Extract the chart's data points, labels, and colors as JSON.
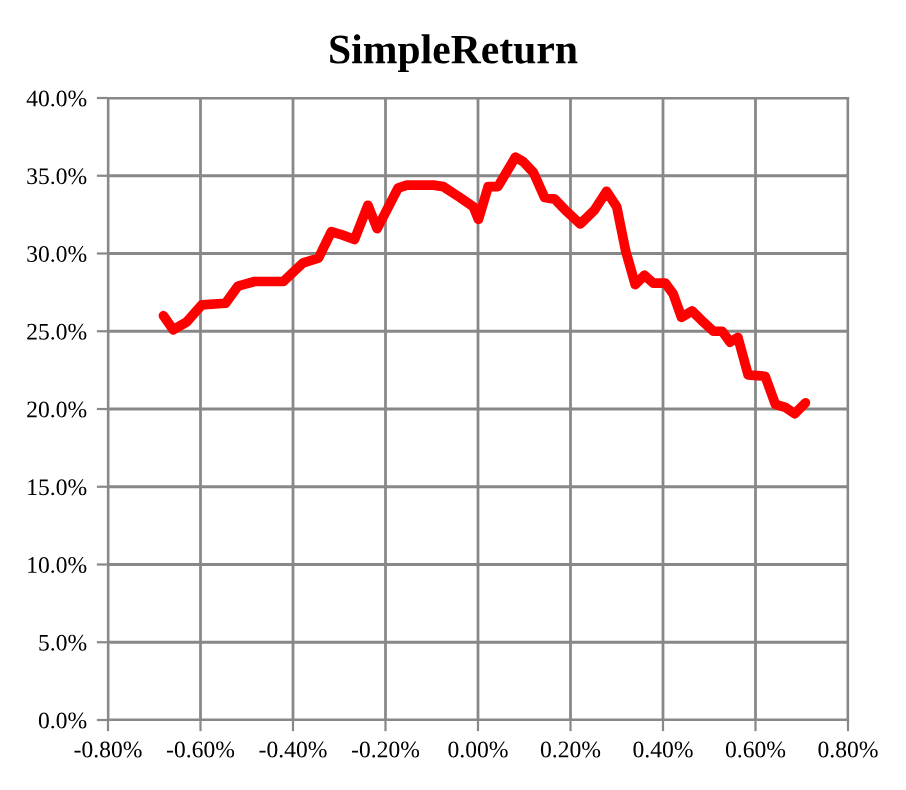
{
  "chart_data": {
    "type": "line",
    "title": "SimpleReturn",
    "x": [
      -0.68,
      -0.659,
      -0.63,
      -0.597,
      -0.546,
      -0.519,
      -0.483,
      -0.421,
      -0.378,
      -0.345,
      -0.317,
      -0.294,
      -0.267,
      -0.238,
      -0.218,
      -0.173,
      -0.154,
      -0.096,
      -0.075,
      -0.039,
      -0.01,
      0.001,
      0.022,
      0.043,
      0.081,
      0.098,
      0.12,
      0.144,
      0.166,
      0.192,
      0.221,
      0.252,
      0.278,
      0.3,
      0.319,
      0.34,
      0.36,
      0.379,
      0.405,
      0.422,
      0.44,
      0.463,
      0.487,
      0.509,
      0.528,
      0.545,
      0.562,
      0.584,
      0.621,
      0.643,
      0.665,
      0.685,
      0.708
    ],
    "series": [
      {
        "color": "#ff0000",
        "values": [
          26.0,
          25.1,
          25.6,
          26.7,
          26.8,
          27.9,
          28.2,
          28.2,
          29.4,
          29.7,
          31.4,
          31.2,
          30.9,
          33.1,
          31.6,
          34.2,
          34.4,
          34.4,
          34.3,
          33.6,
          33.0,
          32.2,
          34.3,
          34.3,
          36.2,
          35.9,
          35.2,
          33.6,
          33.5,
          32.7,
          31.9,
          32.8,
          34.0,
          33.0,
          30.2,
          28.0,
          28.6,
          28.1,
          28.1,
          27.4,
          25.9,
          26.3,
          25.6,
          25.0,
          25.0,
          24.3,
          24.6,
          22.2,
          22.1,
          20.3,
          20.1,
          19.7,
          20.4
        ]
      }
    ],
    "xlim": [
      -0.8,
      0.8
    ],
    "xticks": [
      {
        "value": -0.8,
        "label": "-0.80%"
      },
      {
        "value": -0.6,
        "label": "-0.60%"
      },
      {
        "value": -0.4,
        "label": "-0.40%"
      },
      {
        "value": -0.2,
        "label": "-0.20%"
      },
      {
        "value": 0,
        "label": "0.00%"
      },
      {
        "value": 0.2,
        "label": "0.20%"
      },
      {
        "value": 0.4,
        "label": "0.40%"
      },
      {
        "value": 0.6,
        "label": "0.60%"
      },
      {
        "value": 0.8,
        "label": "0.80%"
      }
    ],
    "ylim": [
      0,
      40
    ],
    "yticks": [
      {
        "value": 0,
        "label": "0.0%"
      },
      {
        "value": 5,
        "label": "5.0%"
      },
      {
        "value": 10,
        "label": "10.0%"
      },
      {
        "value": 15,
        "label": "15.0%"
      },
      {
        "value": 20,
        "label": "20.0%"
      },
      {
        "value": 25,
        "label": "25.0%"
      },
      {
        "value": 30,
        "label": "30.0%"
      },
      {
        "value": 35,
        "label": "35.0%"
      },
      {
        "value": 40,
        "label": "40.0%"
      }
    ],
    "grid": true,
    "marker": "none",
    "line_style": "solid"
  }
}
